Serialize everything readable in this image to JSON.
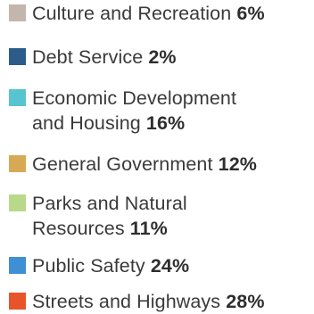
{
  "chart_data": {
    "type": "pie",
    "legend_position": "list",
    "categories": [
      "Culture and Recreation",
      "Debt Service",
      "Economic Development and Housing",
      "General Government",
      "Parks and Natural Resources",
      "Public Safety",
      "Streets and Highways"
    ],
    "values": [
      6,
      2,
      16,
      12,
      11,
      24,
      28
    ],
    "value_labels": [
      "6%",
      "2%",
      "16%",
      "12%",
      "11%",
      "24%",
      "28%"
    ],
    "colors": [
      "#c2b6ad",
      "#2e5c8a",
      "#56c5d0",
      "#d8a955",
      "#b9d98a",
      "#3f8fd4",
      "#e8532a"
    ],
    "items": [
      {
        "label": "Culture and Recreation",
        "line1": "Culture and Recreation",
        "line2": "",
        "pct": "6%",
        "color": "#c2b6ad"
      },
      {
        "label": "Debt Service",
        "line1": "Debt Service",
        "line2": "",
        "pct": "2%",
        "color": "#2e5c8a"
      },
      {
        "label": "Economic Development and Housing",
        "line1": "Economic Development",
        "line2": "and Housing",
        "pct": "16%",
        "color": "#56c5d0"
      },
      {
        "label": "General Government",
        "line1": "General Government",
        "line2": "",
        "pct": "12%",
        "color": "#d8a955"
      },
      {
        "label": "Parks and Natural Resources",
        "line1": "Parks and Natural",
        "line2": "Resources",
        "pct": "11%",
        "color": "#b9d98a"
      },
      {
        "label": "Public Safety",
        "line1": "Public Safety",
        "line2": "",
        "pct": "24%",
        "color": "#3f8fd4"
      },
      {
        "label": "Streets and Highways",
        "line1": "Streets and Highways",
        "line2": "",
        "pct": "28%",
        "color": "#e8532a"
      }
    ]
  }
}
